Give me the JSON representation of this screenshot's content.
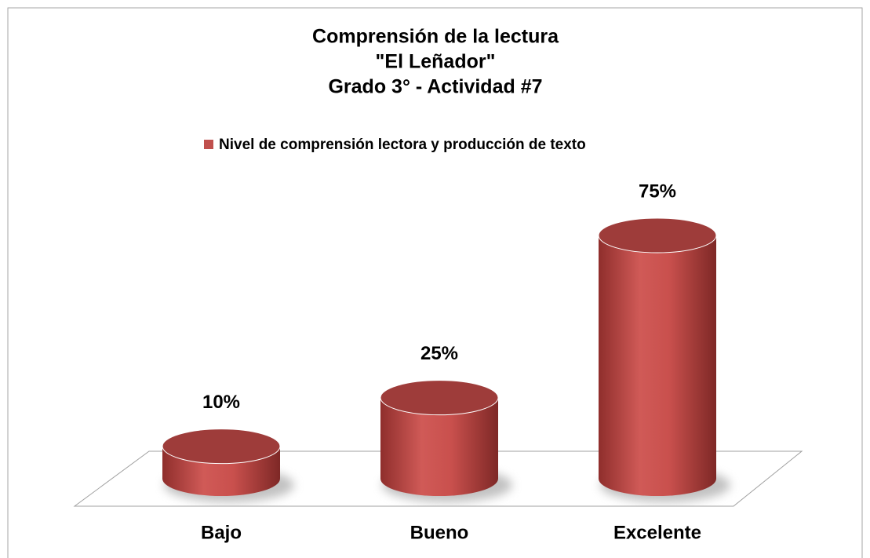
{
  "chart_data": {
    "type": "bar3d",
    "title": [
      "Comprensión de la lectura",
      "\"El Leñador\"",
      "Grado 3° - Actividad #7"
    ],
    "categories": [
      "Bajo",
      "Bueno",
      "Excelente"
    ],
    "series": [
      {
        "name": "Nivel de comprensión lectora y producción de texto",
        "color": "#c0504d",
        "values": [
          10,
          25,
          75
        ],
        "value_labels": [
          "10%",
          "25%",
          "75%"
        ]
      }
    ],
    "legend": "top"
  }
}
